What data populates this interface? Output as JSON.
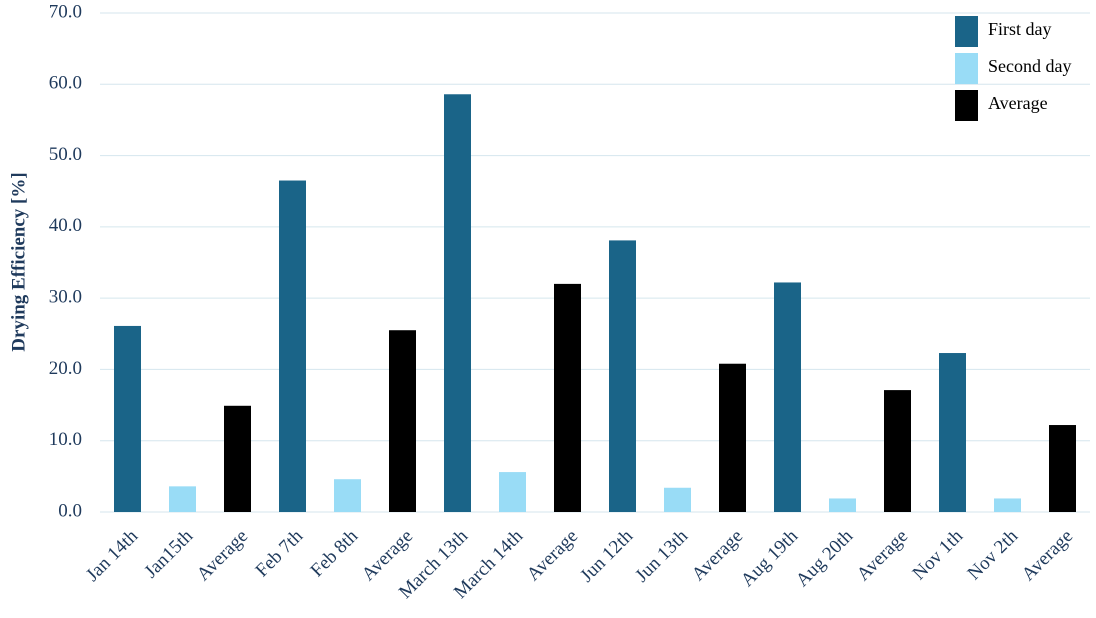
{
  "chart_data": {
    "type": "bar",
    "ylabel": "Drying Efficiency [%]",
    "categories": [
      "Jan 14th",
      "Jan15th",
      "Average",
      "Feb 7th",
      "Feb 8th",
      "Average",
      "March 13th",
      "March 14th",
      "Average",
      "Jun 12th",
      "Jun 13th",
      "Average",
      "Aug 19th",
      "Aug 20th",
      "Average",
      "Nov 1th",
      "Nov 2th",
      "Average"
    ],
    "series": [
      {
        "name": "First day",
        "color": "#1a6488",
        "values": [
          26.1,
          null,
          null,
          46.5,
          null,
          null,
          58.6,
          null,
          null,
          38.1,
          null,
          null,
          32.2,
          null,
          null,
          22.3,
          null,
          null
        ]
      },
      {
        "name": "Second day",
        "color": "#99dcf6",
        "values": [
          null,
          3.6,
          null,
          null,
          4.6,
          null,
          null,
          5.6,
          null,
          null,
          3.4,
          null,
          null,
          1.9,
          null,
          null,
          1.9,
          null
        ]
      },
      {
        "name": "Average",
        "color": "#000000",
        "values": [
          null,
          null,
          14.9,
          null,
          null,
          25.5,
          null,
          null,
          32.0,
          null,
          null,
          20.8,
          null,
          null,
          17.1,
          null,
          null,
          12.2
        ]
      }
    ],
    "ylim": [
      0,
      70
    ],
    "yticks": [
      {
        "value": 0,
        "label": "0.0"
      },
      {
        "value": 10,
        "label": "10.0"
      },
      {
        "value": 20,
        "label": "20.0"
      },
      {
        "value": 30,
        "label": "30.0"
      },
      {
        "value": 40,
        "label": "40.0"
      },
      {
        "value": 50,
        "label": "50.0"
      },
      {
        "value": 60,
        "label": "60.0"
      },
      {
        "value": 70,
        "label": "70.0"
      }
    ],
    "grid": true,
    "legend": "top-right"
  }
}
